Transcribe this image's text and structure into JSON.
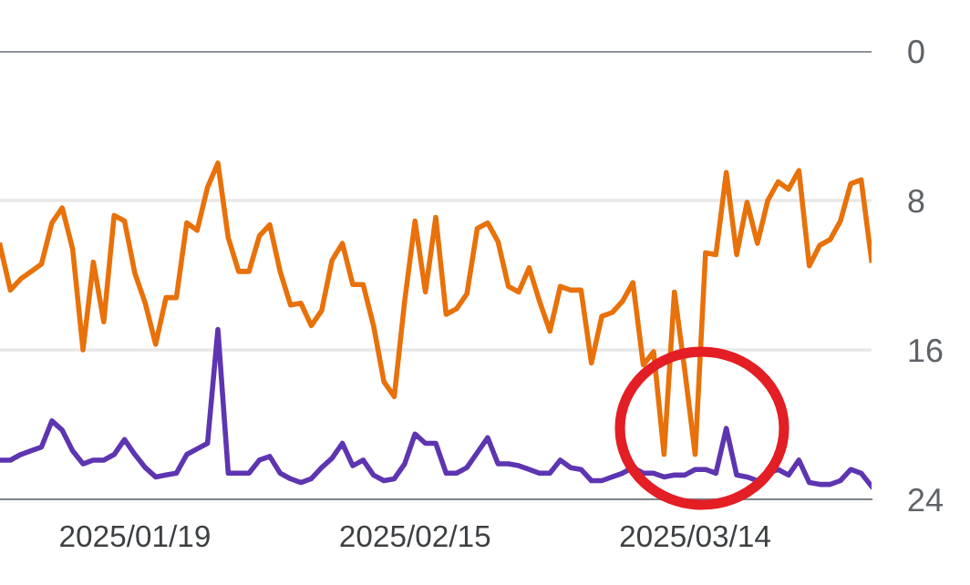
{
  "chart_data": {
    "type": "line",
    "x": [
      "2025-01-06",
      "2025-01-07",
      "2025-01-08",
      "2025-01-09",
      "2025-01-10",
      "2025-01-11",
      "2025-01-12",
      "2025-01-13",
      "2025-01-14",
      "2025-01-15",
      "2025-01-16",
      "2025-01-17",
      "2025-01-18",
      "2025-01-19",
      "2025-01-20",
      "2025-01-21",
      "2025-01-22",
      "2025-01-23",
      "2025-01-24",
      "2025-01-25",
      "2025-01-26",
      "2025-01-27",
      "2025-01-28",
      "2025-01-29",
      "2025-01-30",
      "2025-01-31",
      "2025-02-01",
      "2025-02-02",
      "2025-02-03",
      "2025-02-04",
      "2025-02-05",
      "2025-02-06",
      "2025-02-07",
      "2025-02-08",
      "2025-02-09",
      "2025-02-10",
      "2025-02-11",
      "2025-02-12",
      "2025-02-13",
      "2025-02-14",
      "2025-02-15",
      "2025-02-16",
      "2025-02-17",
      "2025-02-18",
      "2025-02-19",
      "2025-02-20",
      "2025-02-21",
      "2025-02-22",
      "2025-02-23",
      "2025-02-24",
      "2025-02-25",
      "2025-02-26",
      "2025-02-27",
      "2025-02-28",
      "2025-03-01",
      "2025-03-02",
      "2025-03-03",
      "2025-03-04",
      "2025-03-05",
      "2025-03-06",
      "2025-03-07",
      "2025-03-08",
      "2025-03-09",
      "2025-03-10",
      "2025-03-11",
      "2025-03-12",
      "2025-03-13",
      "2025-03-14",
      "2025-03-15",
      "2025-03-16",
      "2025-03-17",
      "2025-03-18",
      "2025-03-19",
      "2025-03-20",
      "2025-03-21",
      "2025-03-22",
      "2025-03-23",
      "2025-03-24",
      "2025-03-25",
      "2025-03-26",
      "2025-03-27",
      "2025-03-28",
      "2025-03-29",
      "2025-03-30",
      "2025-03-31"
    ],
    "series": [
      {
        "color": "#e8710a",
        "values": [
          10.4,
          12.8,
          12.2,
          11.8,
          11.4,
          9.2,
          8.4,
          10.6,
          16.0,
          11.3,
          14.5,
          8.8,
          9.1,
          11.9,
          13.5,
          15.7,
          13.2,
          13.2,
          9.2,
          9.6,
          7.3,
          6.0,
          10.0,
          11.8,
          11.8,
          9.9,
          9.3,
          11.8,
          13.6,
          13.5,
          14.7,
          13.9,
          11.2,
          10.3,
          12.5,
          12.5,
          14.7,
          17.7,
          18.5,
          13.4,
          9.1,
          12.9,
          8.9,
          14.1,
          13.8,
          13.0,
          9.5,
          9.2,
          10.2,
          12.6,
          12.9,
          11.6,
          13.4,
          15.0,
          12.6,
          12.8,
          12.8,
          16.7,
          14.2,
          14.0,
          13.4,
          12.4,
          16.8,
          16.1,
          21.6,
          12.9,
          17.1,
          21.6,
          10.8,
          10.9,
          6.5,
          10.9,
          8.1,
          10.3,
          8.0,
          7.0,
          7.4,
          6.4,
          11.5,
          10.4,
          10.1,
          9.1,
          7.1,
          6.9,
          11.2
        ]
      },
      {
        "color": "#5e35b1",
        "values": [
          21.9,
          21.9,
          21.6,
          21.4,
          21.2,
          19.8,
          20.3,
          21.4,
          22.1,
          21.9,
          21.9,
          21.6,
          20.8,
          21.6,
          22.3,
          22.8,
          22.7,
          22.6,
          21.6,
          21.3,
          21.0,
          14.9,
          22.6,
          22.6,
          22.6,
          21.9,
          21.7,
          22.6,
          22.9,
          23.1,
          22.9,
          22.3,
          21.8,
          21.0,
          22.2,
          21.9,
          22.7,
          23.0,
          22.9,
          22.1,
          20.5,
          21.0,
          21.0,
          22.6,
          22.6,
          22.3,
          21.5,
          20.7,
          22.1,
          22.1,
          22.2,
          22.4,
          22.6,
          22.6,
          21.9,
          22.3,
          22.4,
          23.0,
          23.0,
          22.8,
          22.6,
          22.3,
          22.6,
          22.6,
          22.8,
          22.7,
          22.7,
          22.4,
          22.4,
          22.6,
          20.2,
          22.7,
          22.8,
          23.0,
          22.6,
          22.4,
          22.7,
          21.9,
          23.1,
          23.2,
          23.2,
          23.0,
          22.4,
          22.6,
          23.3
        ]
      }
    ],
    "xlim": [
      "2025-01-06",
      "2025-03-31"
    ],
    "xticks": [
      {
        "value": "2025-01-19",
        "label": "2025/01/19"
      },
      {
        "value": "2025-02-15",
        "label": "2025/02/15"
      },
      {
        "value": "2025-03-14",
        "label": "2025/03/14"
      }
    ],
    "ylim": [
      24,
      0
    ],
    "yticks": [
      0,
      8,
      16,
      24
    ],
    "grid": "y",
    "marker": "none",
    "line_style": "solid"
  }
}
